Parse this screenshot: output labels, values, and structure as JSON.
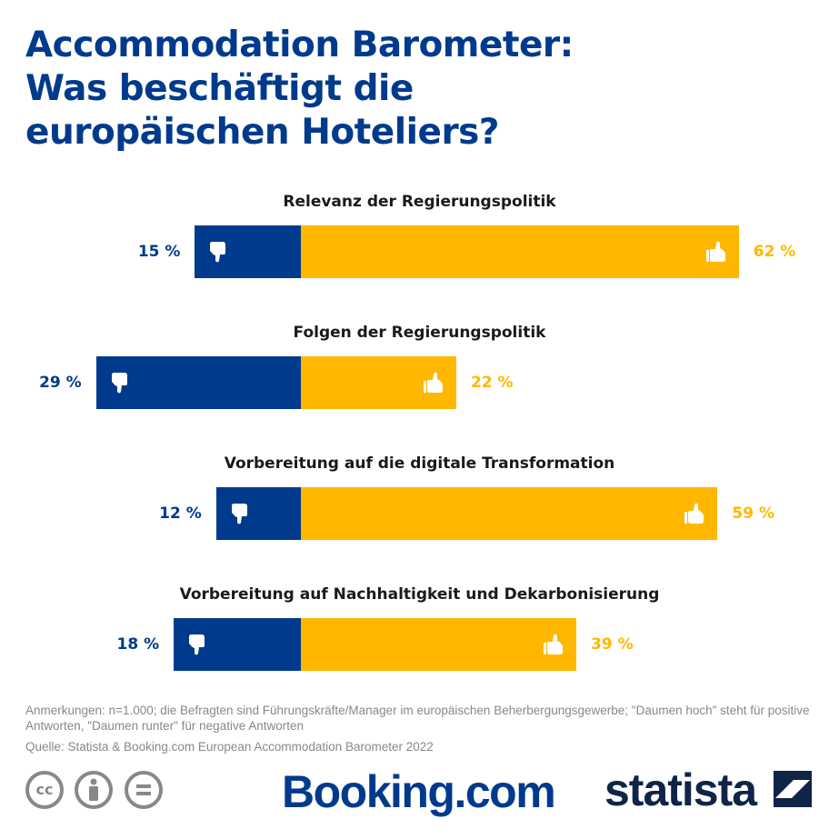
{
  "title_lines": [
    "Accommodation Barometer:",
    "Was beschäftigt die",
    "europäischen Hoteliers?"
  ],
  "colors": {
    "negative": "#003a8c",
    "positive": "#ffb700",
    "title": "#003a8c"
  },
  "chart_data": {
    "type": "bar",
    "orientation": "horizontal-diverging",
    "categories": [
      "Relevanz der Regierungspolitik",
      "Folgen der Regierungspolitik",
      "Vorbereitung auf die digitale Transformation",
      "Vorbereitung auf Nachhaltigkeit und Dekarbonisierung"
    ],
    "series": [
      {
        "icon": "thumbs-down-icon",
        "values": [
          15,
          29,
          12,
          18
        ]
      },
      {
        "icon": "thumbs-up-icon",
        "values": [
          62,
          22,
          59,
          39
        ]
      }
    ],
    "labels_neg": [
      "15 %",
      "29 %",
      "12 %",
      "18 %"
    ],
    "labels_pos": [
      "62 %",
      "22 %",
      "59 %",
      "39 %"
    ],
    "unit": "%"
  },
  "footer": {
    "note": "Anmerkungen: n=1.000; die Befragten sind Führungskräfte/Manager im europäischen Beherbergungsgewerbe; \"Daumen hoch\" steht für positive Antworten, \"Daumen runter\" für negative Antworten",
    "source": "Quelle: Statista & Booking.com European Accommodation Barometer 2022",
    "license_icons": [
      "cc-icon",
      "attribution-icon",
      "no-derivatives-icon"
    ],
    "logo_booking": "Booking.com",
    "logo_statista": "statista"
  }
}
